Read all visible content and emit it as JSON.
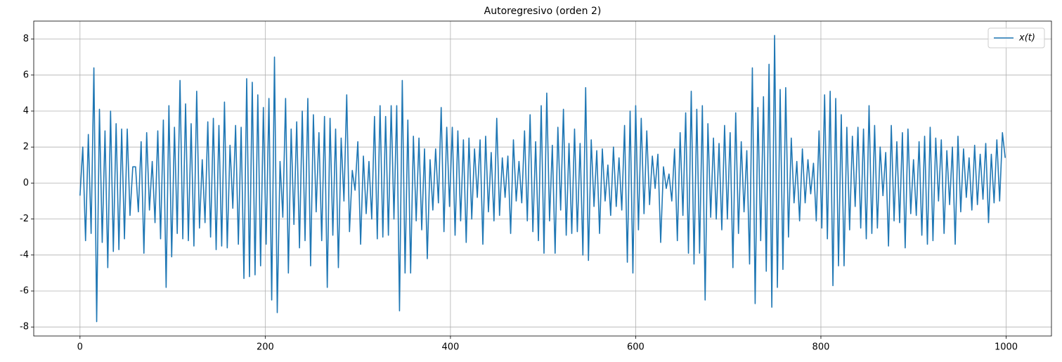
{
  "chart_data": {
    "type": "line",
    "title": "Autoregresivo (orden 2)",
    "x": [
      0,
      3,
      6,
      9,
      12,
      15,
      18,
      21,
      24,
      27,
      30,
      33,
      36,
      39,
      42,
      45,
      48,
      51,
      54,
      57,
      60,
      63,
      66,
      69,
      72,
      75,
      78,
      81,
      84,
      87,
      90,
      93,
      96,
      99,
      102,
      105,
      108,
      111,
      114,
      117,
      120,
      123,
      126,
      129,
      132,
      135,
      138,
      141,
      144,
      147,
      150,
      153,
      156,
      159,
      162,
      165,
      168,
      171,
      174,
      177,
      180,
      183,
      186,
      189,
      192,
      195,
      198,
      201,
      204,
      207,
      210,
      213,
      216,
      219,
      222,
      225,
      228,
      231,
      234,
      237,
      240,
      243,
      246,
      249,
      252,
      255,
      258,
      261,
      264,
      267,
      270,
      273,
      276,
      279,
      282,
      285,
      288,
      291,
      294,
      297,
      300,
      303,
      306,
      309,
      312,
      315,
      318,
      321,
      324,
      327,
      330,
      333,
      336,
      339,
      342,
      345,
      348,
      351,
      354,
      357,
      360,
      363,
      366,
      369,
      372,
      375,
      378,
      381,
      384,
      387,
      390,
      393,
      396,
      399,
      402,
      405,
      408,
      411,
      414,
      417,
      420,
      423,
      426,
      429,
      432,
      435,
      438,
      441,
      444,
      447,
      450,
      453,
      456,
      459,
      462,
      465,
      468,
      471,
      474,
      477,
      480,
      483,
      486,
      489,
      492,
      495,
      498,
      501,
      504,
      507,
      510,
      513,
      516,
      519,
      522,
      525,
      528,
      531,
      534,
      537,
      540,
      543,
      546,
      549,
      552,
      555,
      558,
      561,
      564,
      567,
      570,
      573,
      576,
      579,
      582,
      585,
      588,
      591,
      594,
      597,
      600,
      603,
      606,
      609,
      612,
      615,
      618,
      621,
      624,
      627,
      630,
      633,
      636,
      639,
      642,
      645,
      648,
      651,
      654,
      657,
      660,
      663,
      666,
      669,
      672,
      675,
      678,
      681,
      684,
      687,
      690,
      693,
      696,
      699,
      702,
      705,
      708,
      711,
      714,
      717,
      720,
      723,
      726,
      729,
      732,
      735,
      738,
      741,
      744,
      747,
      750,
      753,
      756,
      759,
      762,
      765,
      768,
      771,
      774,
      777,
      780,
      783,
      786,
      789,
      792,
      795,
      798,
      801,
      804,
      807,
      810,
      813,
      816,
      819,
      822,
      825,
      828,
      831,
      834,
      837,
      840,
      843,
      846,
      849,
      852,
      855,
      858,
      861,
      864,
      867,
      870,
      873,
      876,
      879,
      882,
      885,
      888,
      891,
      894,
      897,
      900,
      903,
      906,
      909,
      912,
      915,
      918,
      921,
      924,
      927,
      930,
      933,
      936,
      939,
      942,
      945,
      948,
      951,
      954,
      957,
      960,
      963,
      966,
      969,
      972,
      975,
      978,
      981,
      984,
      987,
      990,
      993,
      996,
      999
    ],
    "series": [
      {
        "name": "x(t)",
        "color": "#1f77b4",
        "values": [
          -0.7,
          2.0,
          -3.2,
          2.7,
          -2.8,
          6.4,
          -7.7,
          4.1,
          -3.3,
          2.9,
          -4.7,
          4.0,
          -3.8,
          3.3,
          -3.7,
          3.0,
          -3.1,
          3.0,
          -1.8,
          0.9,
          0.9,
          -1.6,
          2.3,
          -3.9,
          2.8,
          -1.5,
          1.2,
          -2.2,
          2.9,
          -3.1,
          3.5,
          -5.8,
          4.3,
          -4.1,
          3.1,
          -2.8,
          5.7,
          -3.1,
          4.4,
          -3.2,
          3.3,
          -3.5,
          5.1,
          -2.5,
          1.3,
          -2.2,
          3.4,
          -3.0,
          3.6,
          -3.7,
          3.2,
          -3.5,
          4.5,
          -3.6,
          2.1,
          -1.4,
          3.2,
          -3.4,
          3.1,
          -5.3,
          5.8,
          -5.2,
          5.6,
          -5.1,
          4.9,
          -4.6,
          4.2,
          -3.4,
          4.7,
          -6.5,
          7.0,
          -7.2,
          1.2,
          -1.9,
          4.7,
          -5.0,
          3.0,
          -2.3,
          3.4,
          -3.6,
          4.0,
          -3.2,
          4.7,
          -4.6,
          3.8,
          -1.6,
          2.8,
          -3.2,
          3.7,
          -5.8,
          3.6,
          -2.9,
          3.0,
          -4.7,
          2.5,
          -1.0,
          4.9,
          -2.7,
          0.7,
          -0.4,
          2.3,
          -3.4,
          1.5,
          -1.7,
          1.2,
          -2.0,
          3.7,
          -3.1,
          4.3,
          -3.0,
          3.7,
          -2.9,
          4.3,
          -2.0,
          4.3,
          -7.1,
          5.7,
          -5.0,
          3.5,
          -5.0,
          2.6,
          -2.1,
          2.5,
          -2.6,
          1.9,
          -4.2,
          1.3,
          -1.5,
          1.9,
          -1.1,
          4.2,
          -2.7,
          3.1,
          -1.3,
          3.1,
          -2.9,
          2.9,
          -2.1,
          2.4,
          -3.3,
          2.5,
          -2.0,
          1.9,
          -0.8,
          2.4,
          -3.4,
          2.6,
          -1.6,
          1.7,
          -2.1,
          3.6,
          -1.8,
          1.4,
          -0.8,
          1.5,
          -2.8,
          2.4,
          -1.0,
          1.2,
          -1.1,
          2.9,
          -2.1,
          3.8,
          -2.7,
          2.3,
          -3.2,
          4.3,
          -3.9,
          5.0,
          -2.1,
          2.1,
          -3.9,
          3.1,
          -1.5,
          4.1,
          -2.9,
          2.2,
          -2.8,
          3.0,
          -2.7,
          2.2,
          -4.0,
          5.3,
          -4.3,
          2.4,
          -1.3,
          1.8,
          -2.8,
          1.9,
          -1.0,
          1.0,
          -1.8,
          2.0,
          -1.3,
          1.4,
          -1.5,
          3.2,
          -4.4,
          4.0,
          -5.0,
          4.3,
          -2.6,
          3.6,
          -1.7,
          2.9,
          -1.2,
          1.5,
          -0.3,
          1.6,
          -3.3,
          0.9,
          -0.3,
          0.5,
          -1.0,
          1.9,
          -3.2,
          2.8,
          -1.8,
          3.9,
          -3.9,
          5.1,
          -4.5,
          4.1,
          -3.9,
          4.3,
          -6.5,
          3.3,
          -1.9,
          2.5,
          -2.0,
          2.2,
          -2.6,
          3.2,
          -2.0,
          2.8,
          -4.7,
          3.9,
          -2.8,
          2.3,
          -1.6,
          1.8,
          -4.5,
          6.4,
          -6.7,
          4.2,
          -3.2,
          4.8,
          -4.9,
          6.6,
          -6.9,
          8.2,
          -5.8,
          5.2,
          -4.8,
          5.3,
          -3.0,
          2.5,
          -1.1,
          1.2,
          -2.1,
          1.9,
          -1.1,
          1.3,
          -0.6,
          1.1,
          -2.1,
          2.9,
          -2.5,
          4.9,
          -3.1,
          5.1,
          -5.7,
          4.7,
          -4.6,
          3.8,
          -4.6,
          3.1,
          -2.6,
          2.6,
          -1.3,
          3.1,
          -2.5,
          3.0,
          -3.1,
          4.3,
          -2.8,
          3.2,
          -2.5,
          2.0,
          -0.7,
          1.7,
          -3.5,
          3.2,
          -2.1,
          2.3,
          -2.2,
          2.8,
          -3.6,
          3.0,
          -1.7,
          1.3,
          -1.8,
          2.3,
          -2.9,
          2.6,
          -3.4,
          3.1,
          -3.2,
          2.5,
          -1.0,
          2.4,
          -2.8,
          1.8,
          -1.2,
          2.0,
          -3.4,
          2.6,
          -1.6,
          1.9,
          -0.8,
          1.4,
          -1.5,
          2.1,
          -1.2,
          1.6,
          -0.9,
          2.2,
          -2.2,
          1.6,
          -1.1,
          2.4,
          -1.0,
          2.8,
          1.4
        ]
      }
    ],
    "xlim": [
      -49.95,
      1048.95
    ],
    "xticks": [
      0,
      200,
      400,
      600,
      800,
      1000
    ],
    "ylim": [
      -8.5,
      9.0
    ],
    "yticks": [
      -8,
      -6,
      -4,
      -2,
      0,
      2,
      4,
      6,
      8
    ],
    "grid": true,
    "legend": "upper right"
  }
}
